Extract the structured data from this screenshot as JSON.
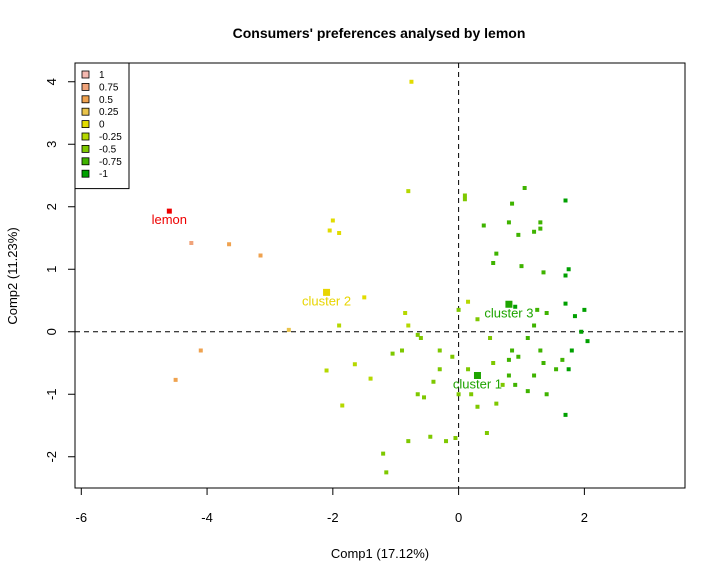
{
  "chart_data": {
    "type": "scatter",
    "title": "Consumers' preferences analysed by lemon",
    "xlabel": "Comp1 (17.12%)",
    "ylabel": "Comp2 (11.23%)",
    "xlim": [
      -6.1,
      3.6
    ],
    "ylim": [
      -2.5,
      4.3
    ],
    "xticks": [
      -6,
      -4,
      -2,
      0,
      2
    ],
    "yticks": [
      -2,
      -1,
      0,
      1,
      2,
      3,
      4
    ],
    "grid": false,
    "reference_lines": {
      "x": 0,
      "y": 0,
      "style": "dashed"
    },
    "legend": {
      "placement": "top-left",
      "entries": [
        {
          "label": "1",
          "color": "#f5b9b0"
        },
        {
          "label": "0.75",
          "color": "#f0a37a"
        },
        {
          "label": "0.5",
          "color": "#efa24f"
        },
        {
          "label": "0.25",
          "color": "#e9c34a"
        },
        {
          "label": "0",
          "color": "#e2dc00"
        },
        {
          "label": "-0.25",
          "color": "#b5d800"
        },
        {
          "label": "-0.5",
          "color": "#7ec800"
        },
        {
          "label": "-0.75",
          "color": "#3fb300"
        },
        {
          "label": "-1",
          "color": "#00a000"
        }
      ]
    },
    "products": [
      {
        "x": -4.6,
        "y": 1.93,
        "color": "#ee0000",
        "label": "lemon"
      }
    ],
    "clusters": [
      {
        "x": -2.1,
        "y": 0.63,
        "color": "#e8d500",
        "label": "cluster 2"
      },
      {
        "x": 0.8,
        "y": 0.44,
        "color": "#1ea400",
        "label": "cluster 3"
      },
      {
        "x": 0.3,
        "y": -0.7,
        "color": "#1ea400",
        "label": "cluster 1"
      }
    ],
    "points": [
      {
        "x": -4.25,
        "y": 1.42,
        "color": "#f0a37a"
      },
      {
        "x": -3.65,
        "y": 1.4,
        "color": "#efa24f"
      },
      {
        "x": -3.15,
        "y": 1.22,
        "color": "#efa24f"
      },
      {
        "x": -4.1,
        "y": -0.3,
        "color": "#efa24f"
      },
      {
        "x": -4.5,
        "y": -0.77,
        "color": "#efa24f"
      },
      {
        "x": -2.7,
        "y": 0.03,
        "color": "#e9c34a"
      },
      {
        "x": -0.75,
        "y": 4.0,
        "color": "#e2dc00"
      },
      {
        "x": -2.0,
        "y": 1.78,
        "color": "#e2dc00"
      },
      {
        "x": -2.05,
        "y": 1.62,
        "color": "#e2dc00"
      },
      {
        "x": -1.9,
        "y": 1.58,
        "color": "#e2dc00"
      },
      {
        "x": -1.5,
        "y": 0.55,
        "color": "#e2dc00"
      },
      {
        "x": -0.8,
        "y": 2.25,
        "color": "#b5d800"
      },
      {
        "x": -0.85,
        "y": 0.3,
        "color": "#b5d800"
      },
      {
        "x": -1.9,
        "y": 0.1,
        "color": "#b5d800"
      },
      {
        "x": -0.8,
        "y": 0.1,
        "color": "#b5d800"
      },
      {
        "x": 0.1,
        "y": 2.18,
        "color": "#7ec800"
      },
      {
        "x": 0.15,
        "y": 0.48,
        "color": "#b5d800"
      },
      {
        "x": -2.1,
        "y": -0.62,
        "color": "#b5d800"
      },
      {
        "x": -1.65,
        "y": -0.52,
        "color": "#b5d800"
      },
      {
        "x": -1.4,
        "y": -0.75,
        "color": "#b5d800"
      },
      {
        "x": -1.85,
        "y": -1.18,
        "color": "#b5d800"
      },
      {
        "x": -1.2,
        "y": -1.95,
        "color": "#7ec800"
      },
      {
        "x": -1.15,
        "y": -2.25,
        "color": "#7ec800"
      },
      {
        "x": -0.8,
        "y": -1.75,
        "color": "#7ec800"
      },
      {
        "x": -0.45,
        "y": -1.68,
        "color": "#7ec800"
      },
      {
        "x": -0.2,
        "y": -1.75,
        "color": "#7ec800"
      },
      {
        "x": -0.05,
        "y": -1.7,
        "color": "#7ec800"
      },
      {
        "x": 0.45,
        "y": -1.62,
        "color": "#7ec800"
      },
      {
        "x": -0.65,
        "y": -1.0,
        "color": "#7ec800"
      },
      {
        "x": -0.55,
        "y": -1.05,
        "color": "#7ec800"
      },
      {
        "x": -0.4,
        "y": -0.8,
        "color": "#7ec800"
      },
      {
        "x": -0.3,
        "y": -0.6,
        "color": "#7ec800"
      },
      {
        "x": -0.1,
        "y": -0.4,
        "color": "#7ec800"
      },
      {
        "x": -0.3,
        "y": -0.3,
        "color": "#7ec800"
      },
      {
        "x": -1.05,
        "y": -0.35,
        "color": "#7ec800"
      },
      {
        "x": -0.9,
        "y": -0.3,
        "color": "#7ec800"
      },
      {
        "x": -0.65,
        "y": -0.05,
        "color": "#7ec800"
      },
      {
        "x": -0.6,
        "y": -0.1,
        "color": "#7ec800"
      },
      {
        "x": 0.0,
        "y": -1.0,
        "color": "#7ec800"
      },
      {
        "x": 0.2,
        "y": -1.0,
        "color": "#7ec800"
      },
      {
        "x": 0.3,
        "y": -1.2,
        "color": "#7ec800"
      },
      {
        "x": 0.6,
        "y": -1.15,
        "color": "#7ec800"
      },
      {
        "x": 0.7,
        "y": -0.85,
        "color": "#7ec800"
      },
      {
        "x": 0.55,
        "y": -0.5,
        "color": "#7ec800"
      },
      {
        "x": 0.15,
        "y": -0.6,
        "color": "#7ec800"
      },
      {
        "x": 0.5,
        "y": -0.1,
        "color": "#7ec800"
      },
      {
        "x": 0.3,
        "y": 0.2,
        "color": "#7ec800"
      },
      {
        "x": 0.0,
        "y": 0.35,
        "color": "#7ec800"
      },
      {
        "x": 0.1,
        "y": 2.12,
        "color": "#7ec800"
      },
      {
        "x": 0.4,
        "y": 1.7,
        "color": "#3fb300"
      },
      {
        "x": 0.55,
        "y": 1.1,
        "color": "#3fb300"
      },
      {
        "x": 0.6,
        "y": 1.25,
        "color": "#3fb300"
      },
      {
        "x": 0.8,
        "y": 1.75,
        "color": "#3fb300"
      },
      {
        "x": 0.85,
        "y": 2.05,
        "color": "#3fb300"
      },
      {
        "x": 0.95,
        "y": 1.55,
        "color": "#3fb300"
      },
      {
        "x": 1.05,
        "y": 2.3,
        "color": "#3fb300"
      },
      {
        "x": 1.0,
        "y": 1.05,
        "color": "#3fb300"
      },
      {
        "x": 1.2,
        "y": 1.6,
        "color": "#3fb300"
      },
      {
        "x": 1.3,
        "y": 1.75,
        "color": "#3fb300"
      },
      {
        "x": 1.3,
        "y": 1.65,
        "color": "#3fb300"
      },
      {
        "x": 1.35,
        "y": 0.95,
        "color": "#3fb300"
      },
      {
        "x": 1.4,
        "y": 0.3,
        "color": "#3fb300"
      },
      {
        "x": 1.25,
        "y": 0.35,
        "color": "#3fb300"
      },
      {
        "x": 1.2,
        "y": 0.1,
        "color": "#3fb300"
      },
      {
        "x": 1.1,
        "y": -0.1,
        "color": "#3fb300"
      },
      {
        "x": 1.3,
        "y": -0.3,
        "color": "#3fb300"
      },
      {
        "x": 1.35,
        "y": -0.5,
        "color": "#3fb300"
      },
      {
        "x": 1.2,
        "y": -0.7,
        "color": "#3fb300"
      },
      {
        "x": 1.1,
        "y": -0.95,
        "color": "#3fb300"
      },
      {
        "x": 0.95,
        "y": -0.4,
        "color": "#3fb300"
      },
      {
        "x": 0.8,
        "y": -0.45,
        "color": "#3fb300"
      },
      {
        "x": 0.9,
        "y": -0.85,
        "color": "#3fb300"
      },
      {
        "x": 0.85,
        "y": -0.3,
        "color": "#3fb300"
      },
      {
        "x": 0.8,
        "y": -0.7,
        "color": "#3fb300"
      },
      {
        "x": 1.4,
        "y": -1.0,
        "color": "#3fb300"
      },
      {
        "x": 1.55,
        "y": -0.6,
        "color": "#3fb300"
      },
      {
        "x": 1.65,
        "y": -0.45,
        "color": "#3fb300"
      },
      {
        "x": 1.75,
        "y": -0.6,
        "color": "#00a000"
      },
      {
        "x": 1.8,
        "y": -0.3,
        "color": "#00a000"
      },
      {
        "x": 1.95,
        "y": 0.0,
        "color": "#00a000"
      },
      {
        "x": 2.05,
        "y": -0.15,
        "color": "#00a000"
      },
      {
        "x": 1.7,
        "y": 0.9,
        "color": "#00a000"
      },
      {
        "x": 1.75,
        "y": 1.0,
        "color": "#00a000"
      },
      {
        "x": 1.7,
        "y": 0.45,
        "color": "#00a000"
      },
      {
        "x": 1.85,
        "y": 0.25,
        "color": "#00a000"
      },
      {
        "x": 2.0,
        "y": 0.35,
        "color": "#00a000"
      },
      {
        "x": 1.7,
        "y": 2.1,
        "color": "#00a000"
      },
      {
        "x": 1.7,
        "y": -1.33,
        "color": "#00a000"
      },
      {
        "x": 0.9,
        "y": 0.4,
        "color": "#00a000"
      }
    ]
  }
}
